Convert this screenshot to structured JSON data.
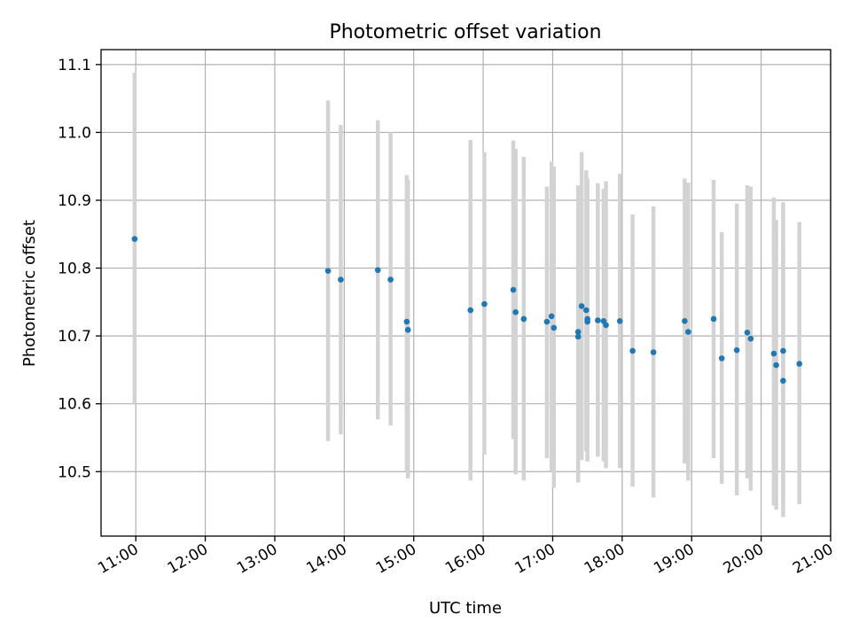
{
  "chart_data": {
    "type": "scatter",
    "title": "Photometric offset variation",
    "xlabel": "UTC time",
    "ylabel": "Photometric offset",
    "xlim": [
      "10:30",
      "21:00"
    ],
    "ylim": [
      10.405,
      11.122
    ],
    "x_ticks": [
      "11:00",
      "12:00",
      "13:00",
      "14:00",
      "15:00",
      "16:00",
      "17:00",
      "18:00",
      "19:00",
      "20:00",
      "21:00"
    ],
    "y_ticks": [
      "10.5",
      "10.6",
      "10.7",
      "10.8",
      "10.9",
      "11.0",
      "11.1"
    ],
    "grid": true,
    "marker_color": "#1f77b4",
    "errorbar_color": "#d3d3d3",
    "points": [
      {
        "time": "10:59",
        "y": 10.843,
        "lo": 10.6,
        "hi": 11.088
      },
      {
        "time": "13:46",
        "y": 10.796,
        "lo": 10.545,
        "hi": 11.047
      },
      {
        "time": "13:57",
        "y": 10.783,
        "lo": 10.555,
        "hi": 11.011
      },
      {
        "time": "14:29",
        "y": 10.797,
        "lo": 10.577,
        "hi": 11.018
      },
      {
        "time": "14:40",
        "y": 10.783,
        "lo": 10.568,
        "hi": 11.0
      },
      {
        "time": "14:54",
        "y": 10.721,
        "lo": 10.5,
        "hi": 10.937
      },
      {
        "time": "14:55",
        "y": 10.709,
        "lo": 10.49,
        "hi": 10.93
      },
      {
        "time": "15:49",
        "y": 10.738,
        "lo": 10.487,
        "hi": 10.989
      },
      {
        "time": "16:01",
        "y": 10.747,
        "lo": 10.525,
        "hi": 10.971
      },
      {
        "time": "16:26",
        "y": 10.768,
        "lo": 10.548,
        "hi": 10.988
      },
      {
        "time": "16:28",
        "y": 10.735,
        "lo": 10.496,
        "hi": 10.976
      },
      {
        "time": "16:35",
        "y": 10.725,
        "lo": 10.487,
        "hi": 10.964
      },
      {
        "time": "16:55",
        "y": 10.721,
        "lo": 10.52,
        "hi": 10.92
      },
      {
        "time": "16:59",
        "y": 10.729,
        "lo": 10.5,
        "hi": 10.957
      },
      {
        "time": "17:01",
        "y": 10.712,
        "lo": 10.476,
        "hi": 10.95
      },
      {
        "time": "17:22",
        "y": 10.706,
        "lo": 10.49,
        "hi": 10.921
      },
      {
        "time": "17:22",
        "y": 10.699,
        "lo": 10.484,
        "hi": 10.922
      },
      {
        "time": "17:25",
        "y": 10.744,
        "lo": 10.517,
        "hi": 10.971
      },
      {
        "time": "17:29",
        "y": 10.738,
        "lo": 10.53,
        "hi": 10.944
      },
      {
        "time": "17:30",
        "y": 10.725,
        "lo": 10.517,
        "hi": 10.932
      },
      {
        "time": "17:30",
        "y": 10.721,
        "lo": 10.515,
        "hi": 10.928
      },
      {
        "time": "17:39",
        "y": 10.723,
        "lo": 10.522,
        "hi": 10.925
      },
      {
        "time": "17:44",
        "y": 10.722,
        "lo": 10.515,
        "hi": 10.917
      },
      {
        "time": "17:46",
        "y": 10.716,
        "lo": 10.505,
        "hi": 10.928
      },
      {
        "time": "17:58",
        "y": 10.722,
        "lo": 10.505,
        "hi": 10.939
      },
      {
        "time": "18:09",
        "y": 10.678,
        "lo": 10.478,
        "hi": 10.879
      },
      {
        "time": "18:27",
        "y": 10.676,
        "lo": 10.462,
        "hi": 10.891
      },
      {
        "time": "18:54",
        "y": 10.722,
        "lo": 10.512,
        "hi": 10.932
      },
      {
        "time": "18:57",
        "y": 10.706,
        "lo": 10.487,
        "hi": 10.926
      },
      {
        "time": "19:19",
        "y": 10.725,
        "lo": 10.52,
        "hi": 10.93
      },
      {
        "time": "19:26",
        "y": 10.667,
        "lo": 10.482,
        "hi": 10.853
      },
      {
        "time": "19:39",
        "y": 10.679,
        "lo": 10.465,
        "hi": 10.895
      },
      {
        "time": "19:48",
        "y": 10.705,
        "lo": 10.49,
        "hi": 10.922
      },
      {
        "time": "19:51",
        "y": 10.696,
        "lo": 10.472,
        "hi": 10.92
      },
      {
        "time": "20:11",
        "y": 10.674,
        "lo": 10.45,
        "hi": 10.904
      },
      {
        "time": "20:13",
        "y": 10.657,
        "lo": 10.444,
        "hi": 10.871
      },
      {
        "time": "20:19",
        "y": 10.634,
        "lo": 10.433,
        "hi": 10.835
      },
      {
        "time": "20:19",
        "y": 10.678,
        "lo": 10.461,
        "hi": 10.897
      },
      {
        "time": "20:33",
        "y": 10.659,
        "lo": 10.452,
        "hi": 10.868
      }
    ]
  }
}
